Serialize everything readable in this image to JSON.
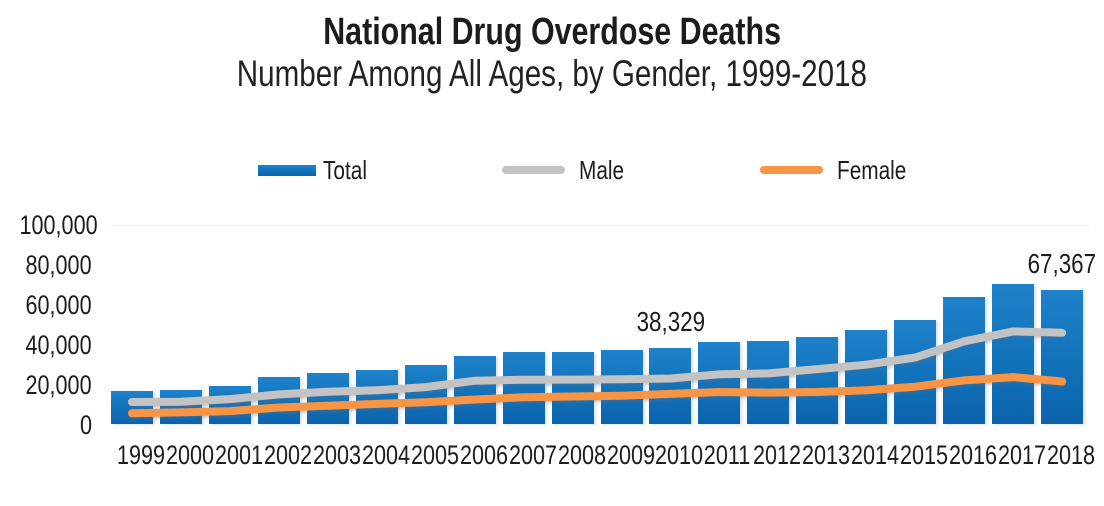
{
  "title": "National Drug Overdose Deaths",
  "subtitle": "Number Among All Ages, by Gender, 1999-2018",
  "colors": {
    "bar_top": "#1e81ca",
    "bar_bottom": "#0c63ac",
    "male_line": "#c3c3c3",
    "female_line": "#f79544",
    "text": "#1c1c1c",
    "background": "#ffffff"
  },
  "legend": [
    {
      "label": "Total",
      "swatch": "bar-swatch",
      "color": "#1172ba"
    },
    {
      "label": "Male",
      "swatch": "line-swatch",
      "color": "#c3c3c3"
    },
    {
      "label": "Female",
      "swatch": "line-swatch",
      "color": "#f79544"
    }
  ],
  "chart_data": {
    "type": "combo: bar (Total) + line (Male, Female)",
    "title": "National Drug Overdose Deaths",
    "subtitle": "Number Among All Ages, by Gender, 1999-2018",
    "xlabel": "",
    "ylabel": "",
    "ylim": [
      0,
      100000
    ],
    "y_ticks": [
      "100,000",
      "80,000",
      "60,000",
      "40,000",
      "20,000",
      "0"
    ],
    "grid": "off",
    "legend_position": "top",
    "categories": [
      "1999",
      "2000",
      "2001",
      "2002",
      "2003",
      "2004",
      "2005",
      "2006",
      "2007",
      "2008",
      "2009",
      "2010",
      "2011",
      "2012",
      "2013",
      "2014",
      "2015",
      "2016",
      "2017",
      "2018"
    ],
    "series": [
      {
        "name": "Total",
        "type": "bar",
        "color": "#1172ba",
        "values": [
          16849,
          17415,
          19394,
          23518,
          25785,
          27424,
          29813,
          34425,
          36010,
          36450,
          37004,
          38329,
          41340,
          41502,
          43982,
          47055,
          52404,
          63632,
          70237,
          67367
        ]
      },
      {
        "name": "Male",
        "type": "line",
        "color": "#c3c3c3",
        "values": [
          11258,
          11373,
          12679,
          15029,
          16409,
          17141,
          18724,
          21914,
          22405,
          22468,
          22593,
          23006,
          25096,
          25549,
          27723,
          29891,
          33519,
          41607,
          46552,
          45853
        ]
      },
      {
        "name": "Female",
        "type": "line",
        "color": "#f79544",
        "values": [
          5591,
          6042,
          6715,
          8489,
          9376,
          10283,
          11089,
          12511,
          13605,
          13982,
          14411,
          15323,
          16244,
          15953,
          16259,
          17164,
          18885,
          22025,
          23685,
          21514
        ]
      }
    ],
    "annotations": [
      {
        "text": "38,329",
        "category": "2010",
        "value": 38329
      },
      {
        "text": "67,367",
        "category": "2018",
        "value": 67367
      }
    ]
  }
}
